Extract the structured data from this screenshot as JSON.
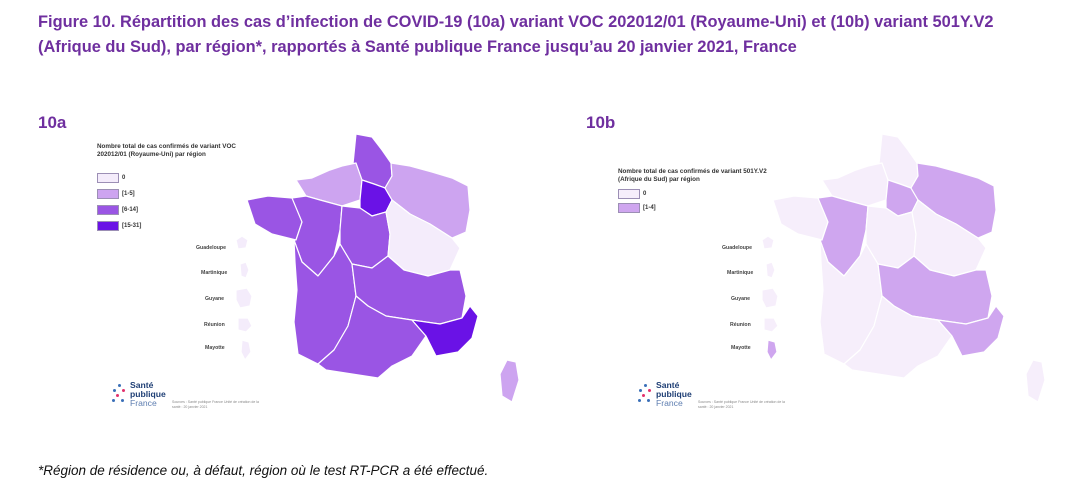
{
  "title": "Figure 10. Répartition des cas d’infection de COVID-19 (10a) variant VOC 202012/01 (Royaume-Uni) et (10b) variant 501Y.V2 (Afrique du Sud), par région*, rapportés à Santé publique France jusqu’au 20 janvier 2021, France",
  "panels": [
    {
      "label": "10a",
      "legend_title": "Nombre total de cas confirmés de variant VOC 202012/01 (Royaume-Uni) par région",
      "legend": [
        {
          "label": "0",
          "color": "#f4ecfb"
        },
        {
          "label": "[1-5]",
          "color": "#cda4f0"
        },
        {
          "label": "[6-14]",
          "color": "#9a55e4"
        },
        {
          "label": "[15-31]",
          "color": "#6a12e6"
        }
      ]
    },
    {
      "label": "10b",
      "legend_title": "Nombre total de cas confirmés de variant 501Y.V2 (Afrique du Sud) par région",
      "legend": [
        {
          "label": "0",
          "color": "#f6eefb"
        },
        {
          "label": "[1-4]",
          "color": "#cfa6ef"
        }
      ]
    }
  ],
  "overseas": [
    "Guadeloupe",
    "Martinique",
    "Guyane",
    "Réunion",
    "Mayotte"
  ],
  "logo": {
    "line1": "Santé",
    "line2": "publique",
    "line3": "France"
  },
  "source": "Sources : Santé publique France  Unité de création de la santé : 20 janvier 2021",
  "footnote": "*Région de résidence ou, à défaut, région où le test RT-PCR a été effectué.",
  "region_colors_10a": {
    "hdf": "#9a55e4",
    "normandie": "#cda4f0",
    "idf": "#6a12e6",
    "grand_est": "#cda4f0",
    "bretagne": "#9a55e4",
    "pays_loire": "#9a55e4",
    "cvl": "#9a55e4",
    "bfc": "#f4ecfb",
    "nouvelle_aquitaine": "#9a55e4",
    "ara": "#9a55e4",
    "occitanie": "#9a55e4",
    "paca": "#6a12e6",
    "corse": "#cda4f0",
    "guadeloupe": "#f4ecfb",
    "martinique": "#f4ecfb",
    "guyane": "#f4ecfb",
    "reunion": "#f4ecfb",
    "mayotte": "#f4ecfb"
  },
  "region_colors_10b": {
    "hdf": "#f6eefb",
    "normandie": "#f6eefb",
    "idf": "#cfa6ef",
    "grand_est": "#cfa6ef",
    "bretagne": "#f6eefb",
    "pays_loire": "#cfa6ef",
    "cvl": "#f6eefb",
    "bfc": "#f6eefb",
    "nouvelle_aquitaine": "#f6eefb",
    "ara": "#cfa6ef",
    "occitanie": "#f6eefb",
    "paca": "#cfa6ef",
    "corse": "#f6eefb",
    "guadeloupe": "#f6eefb",
    "martinique": "#f6eefb",
    "guyane": "#f6eefb",
    "reunion": "#f6eefb",
    "mayotte": "#cfa6ef"
  }
}
